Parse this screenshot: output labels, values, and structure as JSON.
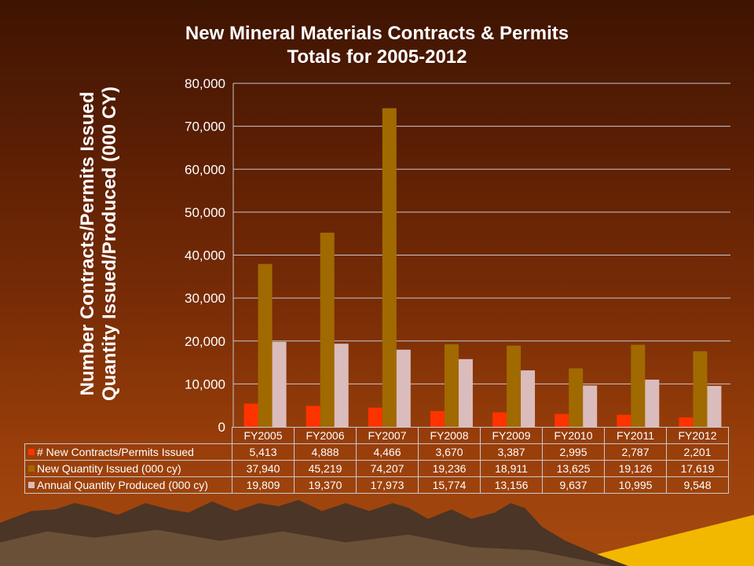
{
  "title_line1": "New Mineral Materials Contracts & Permits",
  "title_line2": "Totals for 2005-2012",
  "ylabel_line1": "Number Contracts/Permits Issued",
  "ylabel_line2": "Quantity Issued/Produced (000 CY)",
  "colors": {
    "series1": "#ff3300",
    "series2": "#a06a00",
    "series3": "#dbbcbc",
    "gridline": "#c8c8c8"
  },
  "chart_data": {
    "type": "bar",
    "title": "New Mineral Materials Contracts & Permits Totals for 2005-2012",
    "ylabel": "Number Contracts/Permits Issued Quantity Issued/Produced (000 CY)",
    "categories": [
      "FY2005",
      "FY2006",
      "FY2007",
      "FY2008",
      "FY2009",
      "FY2010",
      "FY2011",
      "FY2012"
    ],
    "ylim": [
      0,
      80000
    ],
    "yticks": [
      0,
      10000,
      20000,
      30000,
      40000,
      50000,
      60000,
      70000,
      80000
    ],
    "ytick_labels": [
      "0",
      "10,000",
      "20,000",
      "30,000",
      "40,000",
      "50,000",
      "60,000",
      "70,000",
      "80,000"
    ],
    "grid": true,
    "legend": "data table",
    "series": [
      {
        "name": "# New Contracts/Permits Issued",
        "values": [
          5413,
          4888,
          4466,
          3670,
          3387,
          2995,
          2787,
          2201
        ],
        "labels": [
          "5,413",
          "4,888",
          "4,466",
          "3,670",
          "3,387",
          "2,995",
          "2,787",
          "2,201"
        ]
      },
      {
        "name": "New Quantity Issued (000 cy)",
        "values": [
          37940,
          45219,
          74207,
          19236,
          18911,
          13625,
          19126,
          17619
        ],
        "labels": [
          "37,940",
          "45,219",
          "74,207",
          "19,236",
          "18,911",
          "13,625",
          "19,126",
          "17,619"
        ]
      },
      {
        "name": "Annual Quantity Produced (000 cy)",
        "values": [
          19809,
          19370,
          17973,
          15774,
          13156,
          9637,
          10995,
          9548
        ],
        "labels": [
          "19,809",
          "19,370",
          "17,973",
          "15,774",
          "13,156",
          "9,637",
          "10,995",
          "9,548"
        ]
      }
    ]
  }
}
